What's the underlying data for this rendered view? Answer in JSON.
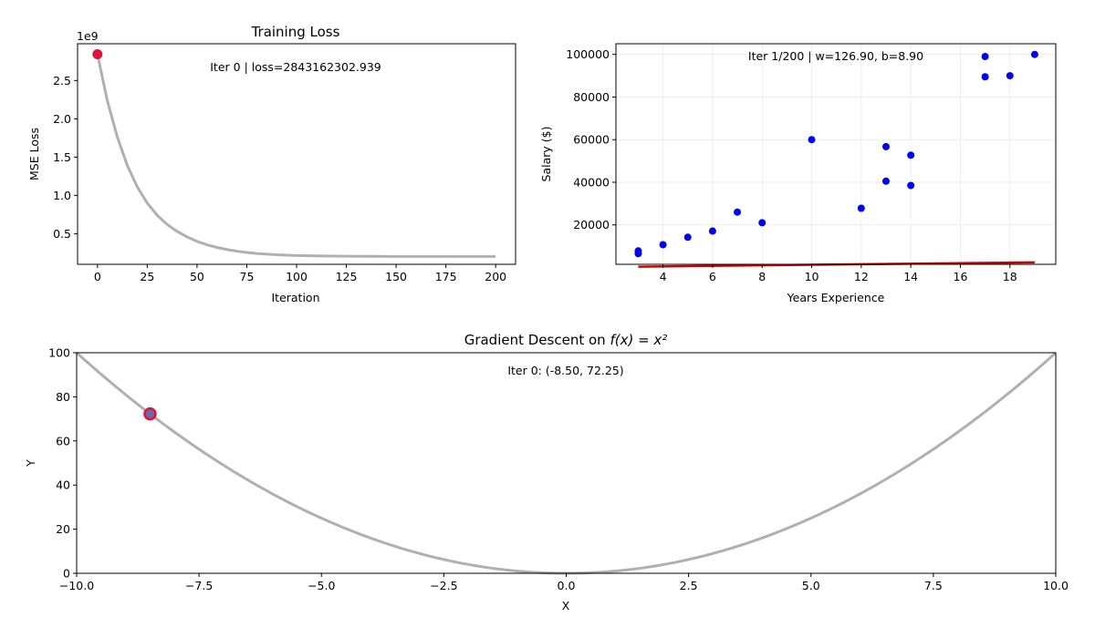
{
  "chart_data": [
    {
      "id": "loss",
      "type": "line",
      "title": "Training Loss",
      "xlabel": "Iteration",
      "ylabel": "MSE Loss",
      "offset_label": "1e9",
      "xlim": [
        -10,
        210
      ],
      "ylim": [
        0.1,
        2.98
      ],
      "xticks": [
        0,
        25,
        50,
        75,
        100,
        125,
        150,
        175,
        200
      ],
      "yticks": [
        0.5,
        1.0,
        1.5,
        2.0,
        2.5
      ],
      "ytick_labels": [
        "0.5",
        "1.0",
        "1.5",
        "2.0",
        "2.5"
      ],
      "grid": false,
      "line_color": "#b0b0b0",
      "series": [
        {
          "x": [
            0,
            5,
            10,
            15,
            20,
            25,
            30,
            35,
            40,
            45,
            50,
            55,
            60,
            65,
            70,
            75,
            80,
            90,
            100,
            110,
            125,
            150,
            175,
            200
          ],
          "y": [
            2.843,
            2.23,
            1.76,
            1.39,
            1.11,
            0.9,
            0.74,
            0.62,
            0.53,
            0.458,
            0.4,
            0.355,
            0.32,
            0.293,
            0.272,
            0.255,
            0.242,
            0.225,
            0.215,
            0.21,
            0.206,
            0.203,
            0.202,
            0.202
          ]
        }
      ],
      "marker": {
        "x": 0,
        "y": 2.843,
        "color": "#dc143c"
      },
      "annotation": "Iter 0 | loss=2843162302.939"
    },
    {
      "id": "regression",
      "type": "scatter",
      "xlabel": "Years Experience",
      "ylabel": "Salary ($)",
      "xlim": [
        2.1,
        19.85
      ],
      "ylim": [
        1500,
        105000
      ],
      "xticks": [
        4,
        6,
        8,
        10,
        12,
        14,
        16,
        18
      ],
      "yticks": [
        20000,
        40000,
        60000,
        80000,
        100000
      ],
      "ytick_labels": [
        "20000",
        "40000",
        "60000",
        "80000",
        "100000"
      ],
      "grid": true,
      "point_color": "#0000ee",
      "line_color": "#cc0000",
      "points": {
        "x": [
          3,
          3,
          4,
          5,
          6,
          7,
          8,
          10,
          12,
          13,
          13,
          14,
          14,
          17,
          17,
          18,
          19
        ],
        "y": [
          6500,
          7800,
          10700,
          14200,
          17100,
          26000,
          21000,
          60000,
          27800,
          56700,
          40500,
          38500,
          52700,
          99000,
          89500,
          90000,
          100000
        ]
      },
      "fit_line": {
        "w": 126.9,
        "b": 8.9,
        "x_range": [
          3,
          19
        ]
      },
      "annotation": "Iter 1/200 | w=126.90, b=8.90"
    },
    {
      "id": "parabola",
      "type": "line",
      "title_prefix": "Gradient Descent on ",
      "title_math": "f(x) = x²",
      "xlabel": "X",
      "ylabel": "Y",
      "xlim": [
        -10,
        10
      ],
      "ylim": [
        0,
        100
      ],
      "xticks": [
        -10,
        -7.5,
        -5,
        -2.5,
        0,
        2.5,
        5,
        7.5,
        10
      ],
      "xtick_labels": [
        "−10.0",
        "−7.5",
        "−5.0",
        "−2.5",
        "0.0",
        "2.5",
        "5.0",
        "7.5",
        "10.0"
      ],
      "yticks": [
        0,
        20,
        40,
        60,
        80,
        100
      ],
      "ytick_labels": [
        "0",
        "20",
        "40",
        "60",
        "80",
        "100"
      ],
      "grid": false,
      "line_color": "#b0b0b0",
      "function": "x^2",
      "marker": {
        "x": -8.5,
        "y": 72.25,
        "edge_color": "#dc143c",
        "face_color": "#6a6aa8"
      },
      "annotation": "Iter 0: (-8.50, 72.25)"
    }
  ]
}
